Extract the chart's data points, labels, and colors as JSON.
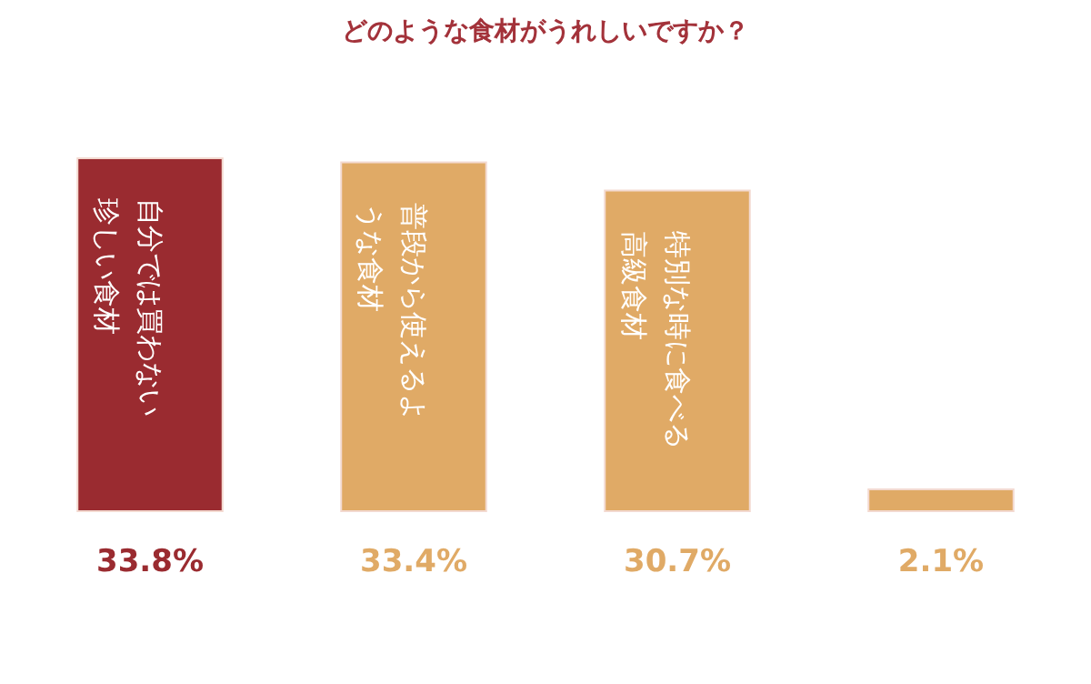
{
  "chart_data": {
    "type": "bar",
    "title": "どのような食材がうれしいですか？",
    "categories": [
      "自分では買わない珍しい食材",
      "普段から使えるような食材",
      "特別な時に食べる高級食材",
      null
    ],
    "values": [
      33.8,
      33.4,
      30.7,
      2.1
    ],
    "colors": [
      "#9a2b30",
      "#e0aa66",
      "#e0aa66",
      "#e0aa66"
    ],
    "value_labels": [
      "33.8%",
      "33.4%",
      "30.7%",
      "2.1%"
    ]
  }
}
